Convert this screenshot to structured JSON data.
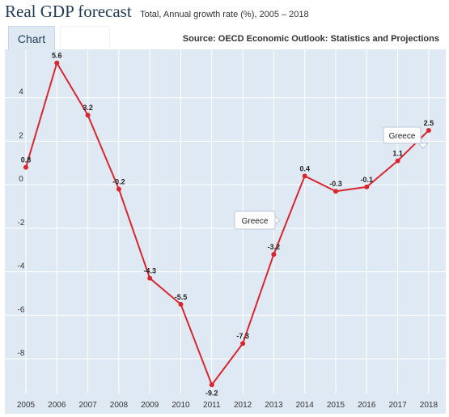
{
  "header": {
    "title": "Real GDP forecast",
    "subtitle": "Total, Annual growth rate (%), 2005 – 2018",
    "source": "Source: OECD Economic Outlook: Statistics and Projections"
  },
  "tabs": [
    {
      "label": "Chart"
    }
  ],
  "colors": {
    "series": "#d9262f",
    "plot_background": "#dfe9f3",
    "grid": "#ffffff"
  },
  "chart_data": {
    "type": "line",
    "title": "",
    "xlabel": "",
    "ylabel": "",
    "x": [
      "2005",
      "2006",
      "2007",
      "2008",
      "2009",
      "2010",
      "2011",
      "2012",
      "2013",
      "2014",
      "2015",
      "2016",
      "2017",
      "2018"
    ],
    "series": [
      {
        "name": "Greece",
        "values": [
          0.8,
          5.6,
          3.2,
          -0.2,
          -4.3,
          -5.5,
          -9.2,
          -7.3,
          -3.2,
          0.4,
          -0.3,
          -0.1,
          1.1,
          2.5
        ],
        "labels": [
          "0.8",
          "5.6",
          "3.2",
          "-0.2",
          "-4.3",
          "-5.5",
          "-9.2",
          "-7.3",
          "-3.2",
          "0.4",
          "-0.3",
          "-0.1",
          "1.1",
          "2.5"
        ]
      }
    ],
    "yticks": [
      4,
      2,
      0,
      -2,
      -4,
      -6,
      -8
    ],
    "ytick_labels": [
      "4",
      "2",
      "0",
      "-2",
      "-4",
      "-6",
      "-8"
    ],
    "ylim": [
      -9.6,
      6.0
    ],
    "grid": true,
    "tooltips": [
      {
        "text": "Greece",
        "year": "2018"
      },
      {
        "text": "Greece",
        "year": "2013"
      }
    ]
  }
}
